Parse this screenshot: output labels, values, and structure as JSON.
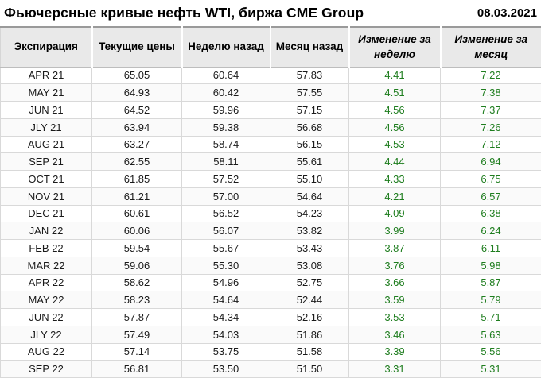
{
  "header": {
    "title": "Фьючерсные кривые нефть WTI, биржа CME Group",
    "date": "08.03.2021"
  },
  "chart_data": {
    "type": "table",
    "title": "Фьючерсные кривые нефть WTI, биржа CME Group",
    "date": "08.03.2021",
    "columns": [
      "Экспирация",
      "Текущие цены",
      "Неделю назад",
      "Месяц назад",
      "Изменение за неделю",
      "Изменение за месяц"
    ],
    "rows": [
      [
        "APR 21",
        "65.05",
        "60.64",
        "57.83",
        "4.41",
        "7.22"
      ],
      [
        "MAY 21",
        "64.93",
        "60.42",
        "57.55",
        "4.51",
        "7.38"
      ],
      [
        "JUN 21",
        "64.52",
        "59.96",
        "57.15",
        "4.56",
        "7.37"
      ],
      [
        "JLY 21",
        "63.94",
        "59.38",
        "56.68",
        "4.56",
        "7.26"
      ],
      [
        "AUG 21",
        "63.27",
        "58.74",
        "56.15",
        "4.53",
        "7.12"
      ],
      [
        "SEP 21",
        "62.55",
        "58.11",
        "55.61",
        "4.44",
        "6.94"
      ],
      [
        "OCT 21",
        "61.85",
        "57.52",
        "55.10",
        "4.33",
        "6.75"
      ],
      [
        "NOV 21",
        "61.21",
        "57.00",
        "54.64",
        "4.21",
        "6.57"
      ],
      [
        "DEC 21",
        "60.61",
        "56.52",
        "54.23",
        "4.09",
        "6.38"
      ],
      [
        "JAN 22",
        "60.06",
        "56.07",
        "53.82",
        "3.99",
        "6.24"
      ],
      [
        "FEB 22",
        "59.54",
        "55.67",
        "53.43",
        "3.87",
        "6.11"
      ],
      [
        "MAR 22",
        "59.06",
        "55.30",
        "53.08",
        "3.76",
        "5.98"
      ],
      [
        "APR 22",
        "58.62",
        "54.96",
        "52.75",
        "3.66",
        "5.87"
      ],
      [
        "MAY 22",
        "58.23",
        "54.64",
        "52.44",
        "3.59",
        "5.79"
      ],
      [
        "JUN 22",
        "57.87",
        "54.34",
        "52.16",
        "3.53",
        "5.71"
      ],
      [
        "JLY 22",
        "57.49",
        "54.03",
        "51.86",
        "3.46",
        "5.63"
      ],
      [
        "AUG 22",
        "57.14",
        "53.75",
        "51.58",
        "3.39",
        "5.56"
      ],
      [
        "SEP 22",
        "56.81",
        "53.50",
        "51.50",
        "3.31",
        "5.31"
      ]
    ],
    "colors": {
      "positive_change": "#1e7d1e",
      "header_background": "#e9e9e9",
      "grid": "#d9d9d9"
    },
    "layout": {
      "grid": true,
      "change_columns_start_index": 4
    }
  }
}
